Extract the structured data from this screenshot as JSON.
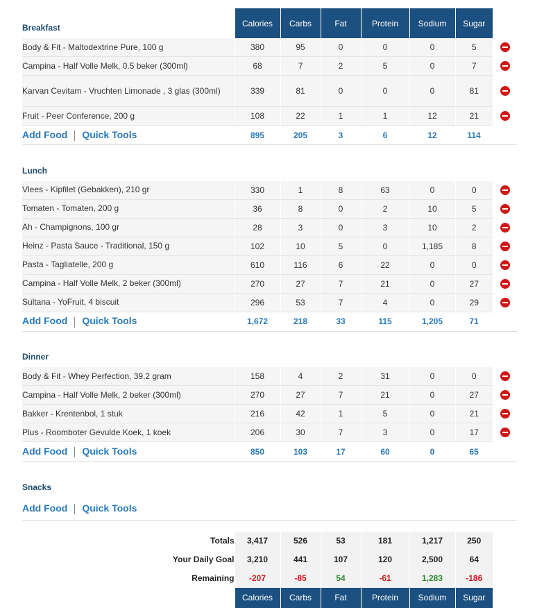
{
  "columns": [
    "Calories",
    "Carbs",
    "Fat",
    "Protein",
    "Sodium",
    "Sugar"
  ],
  "add_food_label": "Add Food",
  "quick_tools_label": "Quick Tools",
  "meals": {
    "breakfast": {
      "title": "Breakfast",
      "items": [
        {
          "name": "Body & Fit - Maltodextrine Pure, 100 g",
          "values": [
            "380",
            "95",
            "0",
            "0",
            "0",
            "5"
          ]
        },
        {
          "name": "Campina - Half Volle Melk, 0.5 beker (300ml)",
          "values": [
            "68",
            "7",
            "2",
            "5",
            "0",
            "7"
          ]
        },
        {
          "name": "Karvan Cevitam - Vruchten Limonade , 3 glas (300ml)",
          "values": [
            "339",
            "81",
            "0",
            "0",
            "0",
            "81"
          ]
        },
        {
          "name": "Fruit - Peer Conference, 200 g",
          "values": [
            "108",
            "22",
            "1",
            "1",
            "12",
            "21"
          ]
        }
      ],
      "totals": [
        "895",
        "205",
        "3",
        "6",
        "12",
        "114"
      ]
    },
    "lunch": {
      "title": "Lunch",
      "items": [
        {
          "name": "Vlees - Kipfilet (Gebakken), 210 gr",
          "values": [
            "330",
            "1",
            "8",
            "63",
            "0",
            "0"
          ]
        },
        {
          "name": "Tomaten - Tomaten, 200 g",
          "values": [
            "36",
            "8",
            "0",
            "2",
            "10",
            "5"
          ]
        },
        {
          "name": "Ah - Champignons, 100 gr",
          "values": [
            "28",
            "3",
            "0",
            "3",
            "10",
            "2"
          ]
        },
        {
          "name": "Heinz - Pasta Sauce - Traditional, 150 g",
          "values": [
            "102",
            "10",
            "5",
            "0",
            "1,185",
            "8"
          ]
        },
        {
          "name": "Pasta - Tagliatelle, 200 g",
          "values": [
            "610",
            "116",
            "6",
            "22",
            "0",
            "0"
          ]
        },
        {
          "name": "Campina - Half Volle Melk, 2 beker (300ml)",
          "values": [
            "270",
            "27",
            "7",
            "21",
            "0",
            "27"
          ]
        },
        {
          "name": "Sultana - YoFruit, 4 biscuit",
          "values": [
            "296",
            "53",
            "7",
            "4",
            "0",
            "29"
          ]
        }
      ],
      "totals": [
        "1,672",
        "218",
        "33",
        "115",
        "1,205",
        "71"
      ]
    },
    "dinner": {
      "title": "Dinner",
      "items": [
        {
          "name": "Body & Fit - Whey Perfection, 39.2 gram",
          "values": [
            "158",
            "4",
            "2",
            "31",
            "0",
            "0"
          ]
        },
        {
          "name": "Campina - Half Volle Melk, 2 beker (300ml)",
          "values": [
            "270",
            "27",
            "7",
            "21",
            "0",
            "27"
          ]
        },
        {
          "name": "Bakker - Krentenbol, 1 stuk",
          "values": [
            "216",
            "42",
            "1",
            "5",
            "0",
            "21"
          ]
        },
        {
          "name": "Plus - Roomboter Gevulde Koek, 1 koek",
          "values": [
            "206",
            "30",
            "7",
            "3",
            "0",
            "17"
          ]
        }
      ],
      "totals": [
        "850",
        "103",
        "17",
        "60",
        "0",
        "65"
      ]
    },
    "snacks": {
      "title": "Snacks"
    }
  },
  "summary": {
    "totals": {
      "label": "Totals",
      "values": [
        "3,417",
        "526",
        "53",
        "181",
        "1,217",
        "250"
      ]
    },
    "goal": {
      "label": "Your Daily Goal",
      "values": [
        "3,210",
        "441",
        "107",
        "120",
        "2,500",
        "64"
      ]
    },
    "remaining": {
      "label": "Remaining",
      "values": [
        "-207",
        "-85",
        "54",
        "-61",
        "1,283",
        "-186"
      ]
    }
  },
  "colors": {
    "header_bg": "#1c5080",
    "link": "#2b79b9",
    "negative": "#d01717",
    "positive": "#2d8a2d",
    "remove_icon": "#d01717"
  },
  "icons": {
    "remove": "remove-circle-icon"
  }
}
